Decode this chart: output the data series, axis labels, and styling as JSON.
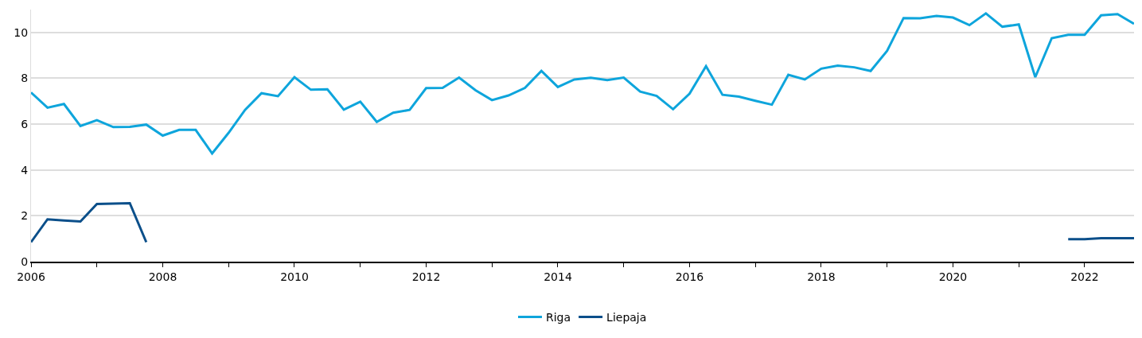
{
  "chart_data": {
    "type": "line",
    "x": [
      2006,
      2006.25,
      2006.5,
      2006.75,
      2007,
      2007.25,
      2007.5,
      2007.75,
      2008,
      2008.25,
      2008.5,
      2008.75,
      2009,
      2009.25,
      2009.5,
      2009.75,
      2010,
      2010.25,
      2010.5,
      2010.75,
      2011,
      2011.25,
      2011.5,
      2011.75,
      2012,
      2012.25,
      2012.5,
      2012.75,
      2013,
      2013.25,
      2013.5,
      2013.75,
      2014,
      2014.25,
      2014.5,
      2014.75,
      2015,
      2015.25,
      2015.5,
      2015.75,
      2016,
      2016.25,
      2016.5,
      2016.75,
      2017,
      2017.25,
      2017.5,
      2017.75,
      2018,
      2018.25,
      2018.5,
      2018.75,
      2019,
      2019.25,
      2019.5,
      2019.75,
      2020,
      2020.25,
      2020.5,
      2020.75,
      2021,
      2021.25,
      2021.5,
      2021.75,
      2022,
      2022.25,
      2022.5,
      2022.75
    ],
    "series": [
      {
        "name": "Riga",
        "color": "#0ea5dc",
        "values": [
          7.38,
          6.72,
          6.88,
          5.92,
          6.17,
          5.87,
          5.88,
          5.98,
          5.5,
          5.75,
          5.75,
          4.72,
          5.62,
          6.62,
          7.35,
          7.22,
          8.05,
          7.5,
          7.52,
          6.63,
          6.98,
          6.1,
          6.5,
          6.62,
          7.57,
          7.58,
          8.03,
          7.48,
          7.05,
          7.25,
          7.58,
          8.32,
          7.62,
          7.95,
          8.02,
          7.92,
          8.03,
          7.42,
          7.23,
          6.65,
          7.33,
          8.53,
          7.28,
          7.2,
          7.02,
          6.85,
          8.15,
          7.95,
          8.42,
          8.55,
          8.48,
          8.32,
          9.2,
          10.63,
          10.62,
          10.72,
          10.65,
          10.32,
          10.83,
          10.25,
          10.35,
          8.05,
          9.75,
          9.9,
          9.9,
          10.75,
          10.8,
          10.38
        ]
      },
      {
        "name": "Liepaja",
        "color": "#0b4f8a",
        "values": [
          0.85,
          1.85,
          1.8,
          1.75,
          2.52,
          2.53,
          2.55,
          0.85,
          null,
          null,
          null,
          null,
          null,
          null,
          null,
          null,
          null,
          null,
          null,
          null,
          null,
          null,
          null,
          null,
          null,
          null,
          null,
          null,
          null,
          null,
          null,
          null,
          null,
          null,
          null,
          null,
          null,
          null,
          null,
          null,
          null,
          null,
          null,
          null,
          null,
          null,
          null,
          null,
          null,
          null,
          null,
          null,
          null,
          null,
          null,
          null,
          null,
          null,
          null,
          null,
          null,
          null,
          null,
          0.98,
          0.98,
          1.02,
          1.02,
          1.02
        ]
      }
    ],
    "xlim": [
      2006,
      2022.75
    ],
    "xticks": [
      2006,
      {
        "value": 2007,
        "label": null
      },
      2008,
      {
        "value": 2009,
        "label": null
      },
      2010,
      {
        "value": 2011,
        "label": null
      },
      2012,
      {
        "value": 2013,
        "label": null
      },
      2014,
      {
        "value": 2015,
        "label": null
      },
      2016,
      {
        "value": 2017,
        "label": null
      },
      2018,
      {
        "value": 2019,
        "label": null
      },
      2020,
      {
        "value": 2021,
        "label": null
      },
      2022
    ],
    "ylim": [
      0,
      11
    ],
    "yticks": [
      0,
      2,
      4,
      6,
      8,
      10
    ],
    "grid": "y",
    "legend": "bottom",
    "marker": "none",
    "line_style": "solid"
  }
}
